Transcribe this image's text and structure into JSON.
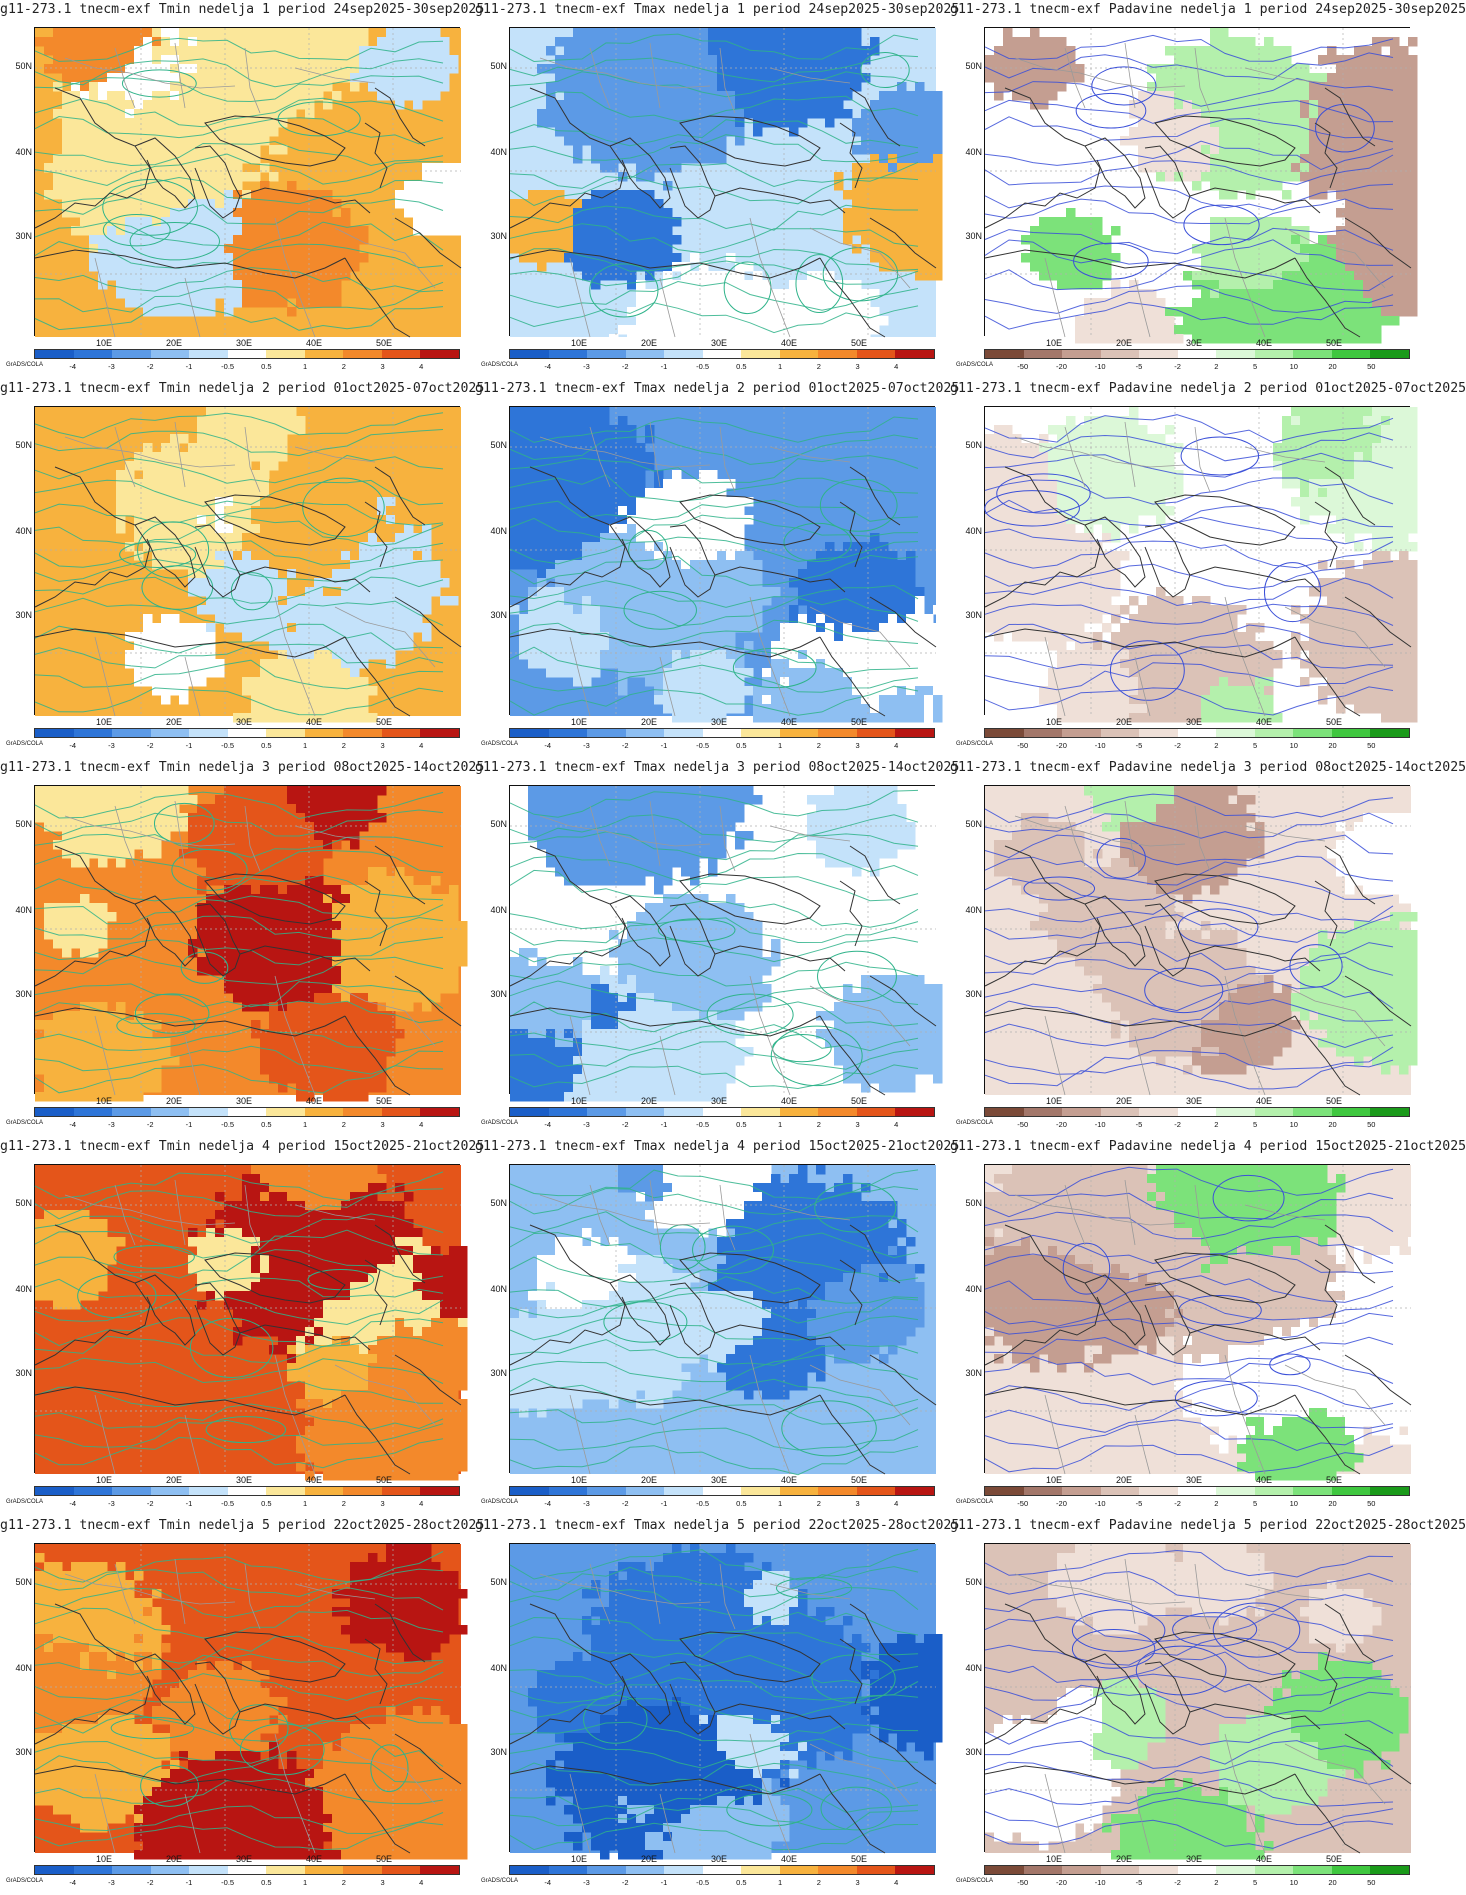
{
  "page_credit": "GrADS/COLA",
  "lat_ticks": [
    "50N",
    "40N",
    "30N"
  ],
  "lon_ticks": [
    "10E",
    "20E",
    "30E",
    "40E",
    "50E"
  ],
  "scales": {
    "temp": {
      "labels": [
        "-4",
        "-3",
        "-2",
        "-1",
        "-0.5",
        "0.5",
        "1",
        "2",
        "3",
        "4"
      ],
      "colors": [
        "#1a5ec8",
        "#2e75d8",
        "#5c9ae6",
        "#8ebff2",
        "#c4e2fa",
        "#ffffff",
        "#fbe79a",
        "#f7b23e",
        "#f3892b",
        "#e4551a",
        "#b81512"
      ]
    },
    "precip": {
      "labels": [
        "-50",
        "-20",
        "-10",
        "-5",
        "-2",
        "2",
        "5",
        "10",
        "20",
        "50"
      ],
      "colors": [
        "#7b4a38",
        "#a3776a",
        "#c49e91",
        "#dbc2b7",
        "#efe0d8",
        "#ffffff",
        "#dcf8d8",
        "#b4f0ac",
        "#7ce27a",
        "#3fc73f",
        "#1a9a1a"
      ]
    }
  },
  "rows": [
    {
      "week": 1,
      "panels": [
        {
          "title": "g11-273.1 tnecm-exf Tmin nedelja 1 period 24sep2025-30sep2025",
          "field": "Tmin",
          "fill": [
            "#f7b23e",
            "#fbe79a",
            "#f3892b",
            "#ffffff",
            "#c4e2fa"
          ],
          "contour": "#2fb38a"
        },
        {
          "title": "g11-273.1 tnecm-exf Tmax nedelja 1 period 24sep2025-30sep2025",
          "field": "Tmax",
          "fill": [
            "#c4e2fa",
            "#2e75d8",
            "#5c9ae6",
            "#f7b23e",
            "#ffffff"
          ],
          "contour": "#2fb38a"
        },
        {
          "title": "g11-273.1 tnecm-exf Padavine nedelja 1 period 24sep2025-30sep2025",
          "field": "Padavine",
          "fill": [
            "#ffffff",
            "#c49e91",
            "#efe0d8",
            "#7ce27a",
            "#b4f0ac"
          ],
          "contour": "#3a4fd8"
        }
      ]
    },
    {
      "week": 2,
      "panels": [
        {
          "title": "g11-273.1 tnecm-exf Tmin nedelja 2 period 01oct2025-07oct2025",
          "field": "Tmin",
          "fill": [
            "#f7b23e",
            "#fbe79a",
            "#f7b23e",
            "#ffffff",
            "#c4e2fa"
          ],
          "contour": "#2fb38a"
        },
        {
          "title": "g11-273.1 tnecm-exf Tmax nedelja 2 period 01oct2025-07oct2025",
          "field": "Tmax",
          "fill": [
            "#5c9ae6",
            "#8ebff2",
            "#2e75d8",
            "#c4e2fa",
            "#ffffff"
          ],
          "contour": "#2fb38a"
        },
        {
          "title": "g11-273.1 tnecm-exf Padavine nedelja 2 period 01oct2025-07oct2025",
          "field": "Padavine",
          "fill": [
            "#ffffff",
            "#efe0d8",
            "#dbc2b7",
            "#b4f0ac",
            "#dcf8d8"
          ],
          "contour": "#3a4fd8"
        }
      ]
    },
    {
      "week": 3,
      "panels": [
        {
          "title": "g11-273.1 tnecm-exf Tmin nedelja 3 period 08oct2025-14oct2025",
          "field": "Tmin",
          "fill": [
            "#f3892b",
            "#e4551a",
            "#f7b23e",
            "#b81512",
            "#fbe79a"
          ],
          "contour": "#2fb38a"
        },
        {
          "title": "g11-273.1 tnecm-exf Tmax nedelja 3 period 08oct2025-14oct2025",
          "field": "Tmax",
          "fill": [
            "#ffffff",
            "#8ebff2",
            "#5c9ae6",
            "#c4e2fa",
            "#2e75d8"
          ],
          "contour": "#2fb38a"
        },
        {
          "title": "g11-273.1 tnecm-exf Padavine nedelja 3 period 08oct2025-14oct2025",
          "field": "Padavine",
          "fill": [
            "#efe0d8",
            "#dbc2b7",
            "#c49e91",
            "#ffffff",
            "#b4f0ac"
          ],
          "contour": "#3a4fd8"
        }
      ]
    },
    {
      "week": 4,
      "panels": [
        {
          "title": "g11-273.1 tnecm-exf Tmin nedelja 4 period 15oct2025-21oct2025",
          "field": "Tmin",
          "fill": [
            "#e4551a",
            "#f3892b",
            "#b81512",
            "#f7b23e",
            "#fbe79a"
          ],
          "contour": "#2fb38a"
        },
        {
          "title": "g11-273.1 tnecm-exf Tmax nedelja 4 period 15oct2025-21oct2025",
          "field": "Tmax",
          "fill": [
            "#8ebff2",
            "#c4e2fa",
            "#5c9ae6",
            "#ffffff",
            "#2e75d8"
          ],
          "contour": "#2fb38a"
        },
        {
          "title": "g11-273.1 tnecm-exf Padavine nedelja 4 period 15oct2025-21oct2025",
          "field": "Padavine",
          "fill": [
            "#efe0d8",
            "#dbc2b7",
            "#ffffff",
            "#c49e91",
            "#7ce27a"
          ],
          "contour": "#3a4fd8"
        }
      ]
    },
    {
      "week": 5,
      "panels": [
        {
          "title": "g11-273.1 tnecm-exf Tmin nedelja 5 period 22oct2025-28oct2025",
          "field": "Tmin",
          "fill": [
            "#e4551a",
            "#f3892b",
            "#f7b23e",
            "#f3892b",
            "#b81512"
          ],
          "contour": "#2fb38a"
        },
        {
          "title": "g11-273.1 tnecm-exf Tmax nedelja 5 period 22oct2025-28oct2025",
          "field": "Tmax",
          "fill": [
            "#5c9ae6",
            "#2e75d8",
            "#8ebff2",
            "#c4e2fa",
            "#1a5ec8"
          ],
          "contour": "#2fb38a"
        },
        {
          "title": "g11-273.1 tnecm-exf Padavine nedelja 5 period 22oct2025-28oct2025",
          "field": "Padavine",
          "fill": [
            "#dbc2b7",
            "#efe0d8",
            "#7ce27a",
            "#b4f0ac",
            "#ffffff"
          ],
          "contour": "#3a4fd8"
        }
      ]
    }
  ]
}
